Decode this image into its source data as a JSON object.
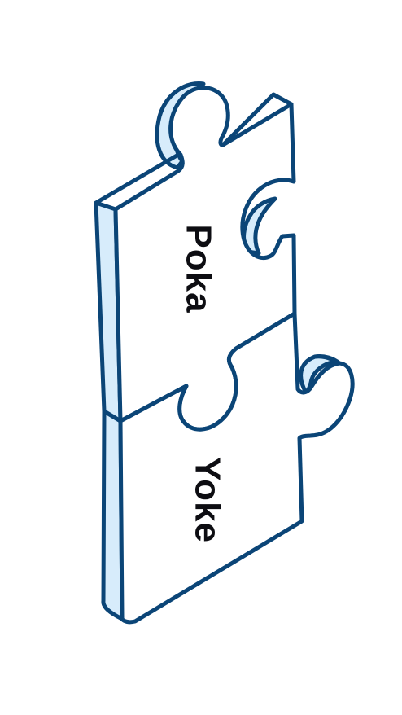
{
  "colors": {
    "outline": "#0b4577",
    "side_face": "#d7ecfb",
    "top_face": "#ffffff",
    "text": "#0d0d12"
  },
  "pieces": [
    {
      "label": "Poka"
    },
    {
      "label": "Yoke"
    }
  ]
}
